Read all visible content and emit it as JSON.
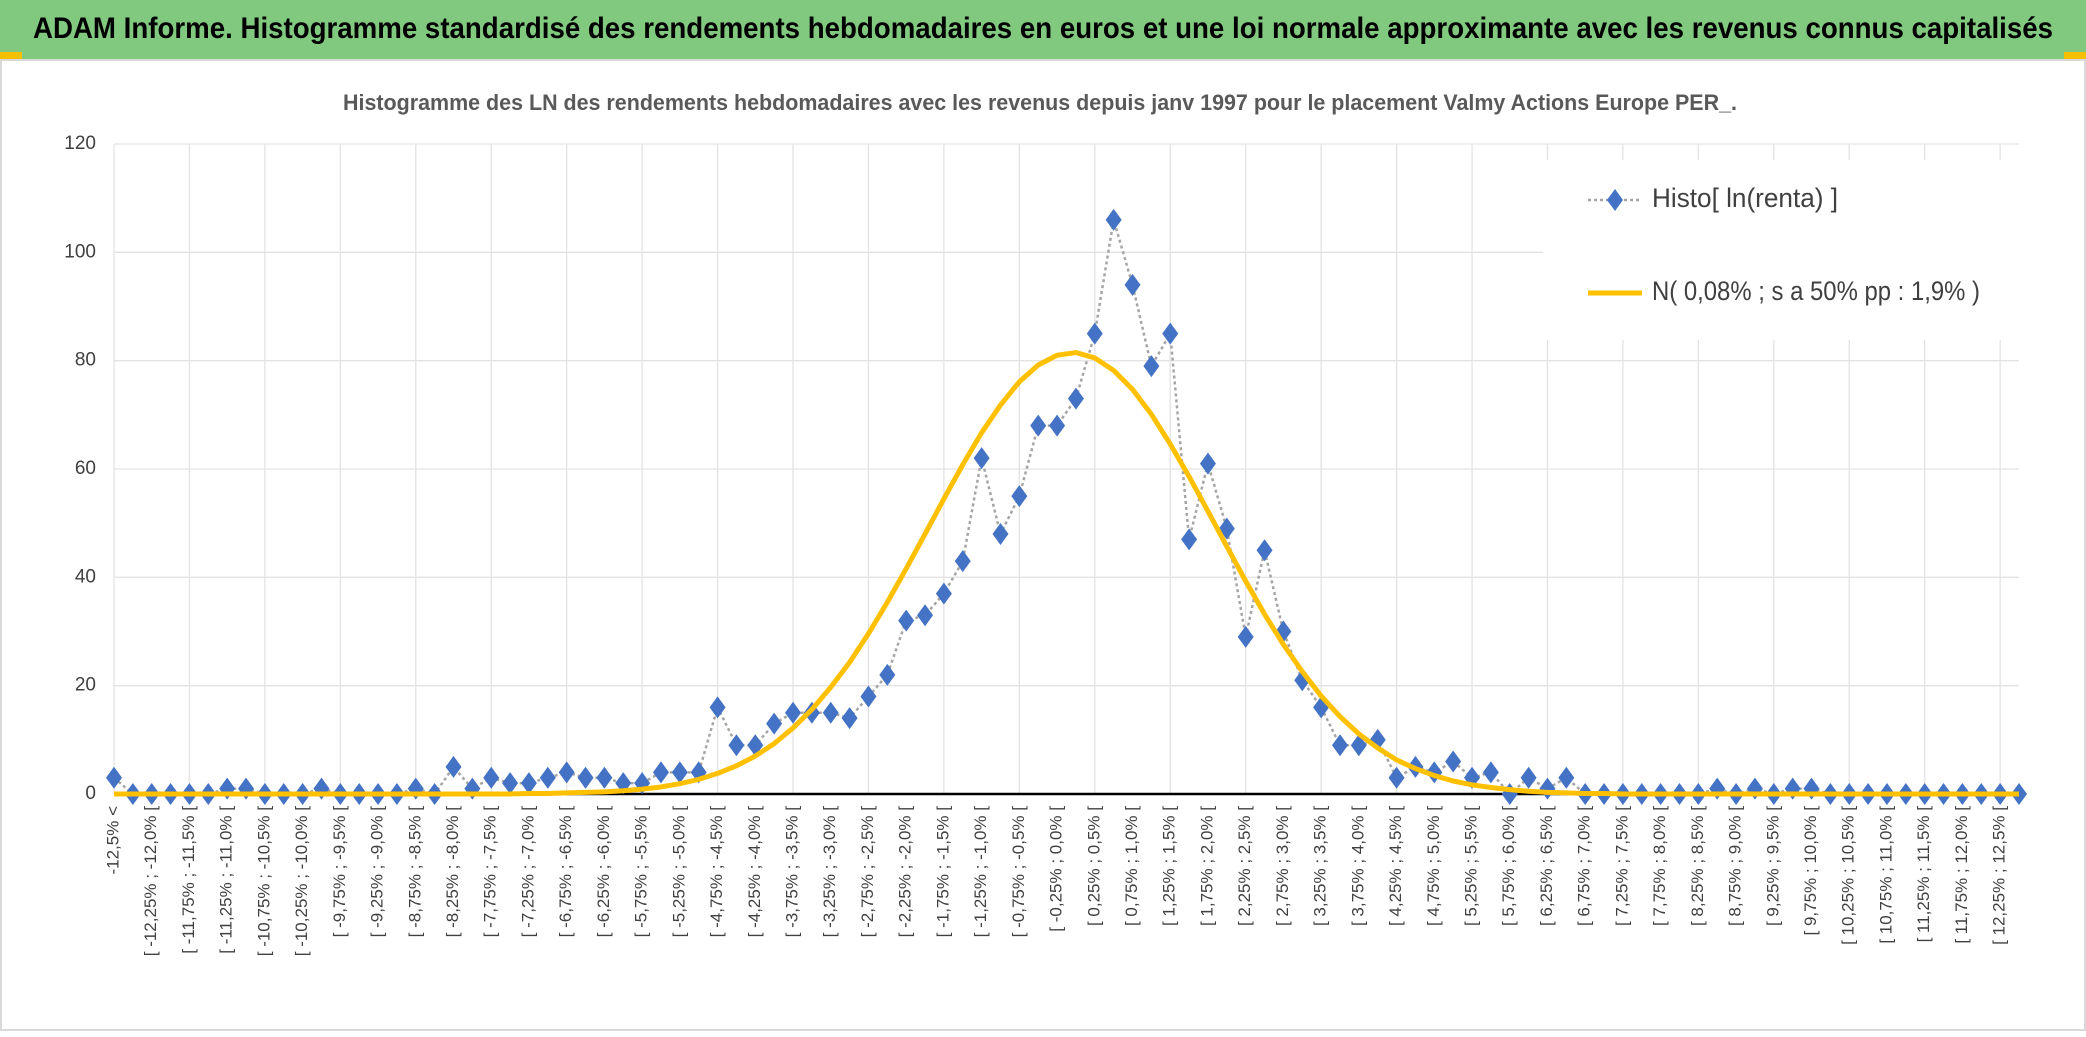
{
  "chart_data": {
    "type": "line",
    "banner": "ADAM Informe. Histogramme standardisé des rendements hebdomadaires en euros et une loi normale approximante avec les revenus connus capitalisés",
    "title": "Histogramme des LN des rendements hebdomadaires avec les revenus depuis janv 1997 pour le placement Valmy Actions Europe PER_.",
    "categories": [
      "-12,5% <",
      null,
      "[ -12,25% ; -12,0% [",
      null,
      "[ -11,75% ; -11,5% [",
      null,
      "[ -11,25% ; -11,0% [",
      null,
      "[ -10,75% ; -10,5% [",
      null,
      "[ -10,25% ; -10,0% [",
      null,
      "[ -9,75% ; -9,5% [",
      null,
      "[ -9,25% ; -9,0% [",
      null,
      "[ -8,75% ; -8,5% [",
      null,
      "[ -8,25% ; -8,0% [",
      null,
      "[ -7,75% ; -7,5% [",
      null,
      "[ -7,25% ; -7,0% [",
      null,
      "[ -6,75% ; -6,5% [",
      null,
      "[ -6,25% ; -6,0% [",
      null,
      "[ -5,75% ; -5,5% [",
      null,
      "[ -5,25% ; -5,0% [",
      null,
      "[ -4,75% ; -4,5% [",
      null,
      "[ -4,25% ; -4,0% [",
      null,
      "[ -3,75% ; -3,5% [",
      null,
      "[ -3,25% ; -3,0% [",
      null,
      "[ -2,75% ; -2,5% [",
      null,
      "[ -2,25% ; -2,0% [",
      null,
      "[ -1,75% ; -1,5% [",
      null,
      "[ -1,25% ; -1,0% [",
      null,
      "[ -0,75% ; -0,5% [",
      null,
      "[ -0,25% ; 0,0% [",
      null,
      "[ 0,25% ; 0,5% [",
      null,
      "[ 0,75% ; 1,0% [",
      null,
      "[ 1,25% ; 1,5% [",
      null,
      "[ 1,75% ; 2,0% [",
      null,
      "[ 2,25% ; 2,5% [",
      null,
      "[ 2,75% ; 3,0% [",
      null,
      "[ 3,25% ; 3,5% [",
      null,
      "[ 3,75% ; 4,0% [",
      null,
      "[ 4,25% ; 4,5% [",
      null,
      "[ 4,75% ; 5,0% [",
      null,
      "[ 5,25% ; 5,5% [",
      null,
      "[ 5,75% ; 6,0% [",
      null,
      "[ 6,25% ; 6,5% [",
      null,
      "[ 6,75% ; 7,0% [",
      null,
      "[ 7,25% ; 7,5% [",
      null,
      "[ 7,75% ; 8,0% [",
      null,
      "[ 8,25% ; 8,5% [",
      null,
      "[ 8,75% ; 9,0% [",
      null,
      "[ 9,25% ; 9,5% [",
      null,
      "[ 9,75% ; 10,0% [",
      null,
      "[ 10,25% ; 10,5% [",
      null,
      "[ 10,75% ; 11,0% [",
      null,
      "[ 11,25% ; 11,5% [",
      null,
      "[ 11,75% ; 12,0% [",
      null,
      "[ 12,25% ; 12,5% [",
      null
    ],
    "series": [
      {
        "name": "Histo[ ln(renta) ]",
        "color": "#4472c4",
        "values": [
          3,
          0,
          0,
          0,
          0,
          0,
          1,
          1,
          0,
          0,
          0,
          1,
          0,
          0,
          0,
          0,
          1,
          0,
          5,
          1,
          3,
          2,
          2,
          3,
          4,
          3,
          3,
          2,
          2,
          4,
          4,
          4,
          16,
          9,
          9,
          13,
          15,
          15,
          15,
          14,
          18,
          22,
          32,
          33,
          37,
          43,
          62,
          48,
          55,
          68,
          68,
          73,
          85,
          106,
          94,
          79,
          85,
          47,
          61,
          49,
          29,
          45,
          30,
          21,
          16,
          9,
          9,
          10,
          3,
          5,
          4,
          6,
          3,
          4,
          0,
          3,
          1,
          3,
          0,
          0,
          0,
          0,
          0,
          0,
          0,
          1,
          0,
          1,
          0,
          1,
          1,
          0,
          0,
          0,
          0,
          0,
          0,
          0,
          0,
          0,
          0,
          0
        ]
      },
      {
        "name": "N( 0,08% ; s a 50% pp : 1,9% )",
        "color": "#ffc000",
        "values": [
          0,
          0,
          0,
          0,
          0,
          0,
          0,
          0,
          0,
          0,
          0,
          0,
          0,
          0,
          0,
          0,
          0,
          0,
          0,
          0,
          0,
          0,
          0.1,
          0.1,
          0.2,
          0.3,
          0.4,
          0.6,
          0.9,
          1.3,
          1.9,
          2.7,
          3.8,
          5.2,
          7.0,
          9.3,
          12.2,
          15.6,
          19.7,
          24.3,
          29.6,
          35.4,
          41.6,
          48.0,
          54.5,
          60.8,
          66.7,
          71.8,
          76.1,
          79.2,
          81.0,
          81.5,
          80.5,
          78.2,
          74.7,
          70.1,
          64.6,
          58.6,
          52.2,
          45.7,
          39.3,
          33.2,
          27.6,
          22.6,
          18.1,
          14.3,
          11.1,
          8.5,
          6.3,
          4.7,
          3.4,
          2.4,
          1.7,
          1.2,
          0.8,
          0.5,
          0.3,
          0.2,
          0.1,
          0.1,
          0,
          0,
          0,
          0,
          0,
          0,
          0,
          0,
          0,
          0,
          0,
          0,
          0,
          0,
          0,
          0,
          0,
          0,
          0,
          0,
          0,
          0
        ]
      }
    ],
    "ylim": [
      0,
      120
    ],
    "yticks": [
      0,
      20,
      40,
      60,
      80,
      100,
      120
    ],
    "grid": true
  }
}
